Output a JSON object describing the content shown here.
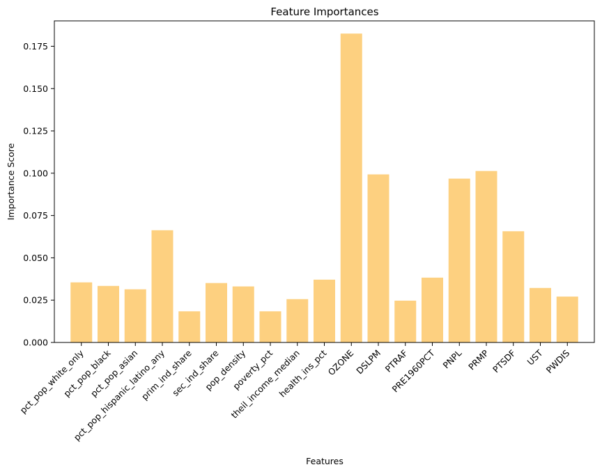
{
  "chart_data": {
    "type": "bar",
    "title": "Feature Importances",
    "xlabel": "Features",
    "ylabel": "Importance Score",
    "ylim": [
      0,
      0.19
    ],
    "yticks": [
      0.0,
      0.025,
      0.05,
      0.075,
      0.1,
      0.125,
      0.15,
      0.175
    ],
    "ytick_labels": [
      "0.000",
      "0.025",
      "0.050",
      "0.075",
      "0.100",
      "0.125",
      "0.150",
      "0.175"
    ],
    "bar_color": "#fdd080",
    "grid": false,
    "categories": [
      "pct_pop_white_only",
      "pct_pop_black",
      "pct_pop_asian",
      "pct_pop_hispanic_latino_any",
      "prim_ind_share",
      "sec_ind_share",
      "pop_density",
      "poverty_pct",
      "theil_income_median",
      "health_ins_pct",
      "OZONE",
      "DSLPM",
      "PTRAF",
      "PRE1960PCT",
      "PNPL",
      "PRMP",
      "PTSDF",
      "UST",
      "PWDIS"
    ],
    "values": [
      0.0355,
      0.0334,
      0.0314,
      0.0663,
      0.0184,
      0.0351,
      0.0331,
      0.0184,
      0.0256,
      0.0371,
      0.1825,
      0.0993,
      0.0247,
      0.0383,
      0.0968,
      0.1013,
      0.0657,
      0.0322,
      0.0271
    ]
  }
}
